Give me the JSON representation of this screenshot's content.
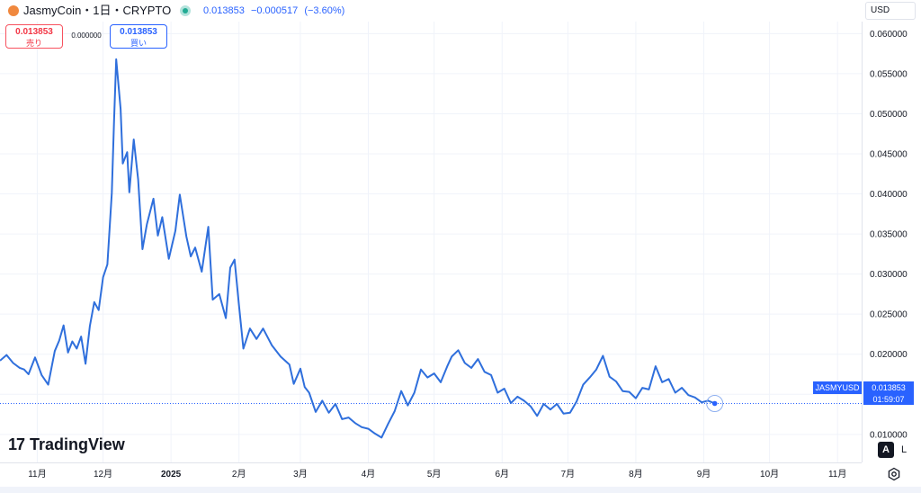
{
  "header": {
    "title": "JasmyCoin・1日・CRYPTO",
    "last_price": "0.013853",
    "change": "−0.000517",
    "change_pct": "(−3.60%)",
    "icons": {
      "coin": "jasmy-coin-icon",
      "status": "market-status-dot"
    }
  },
  "trade": {
    "sell_price": "0.013853",
    "sell_label": "売り",
    "spread": "0.000000",
    "buy_price": "0.013853",
    "buy_label": "買い"
  },
  "currency": "USD",
  "price_badge": {
    "symbol": "JASMYUSD",
    "price": "0.013853",
    "countdown": "01:59:07"
  },
  "scale_buttons": {
    "auto": "A",
    "log": "L"
  },
  "logo": {
    "mark": "17",
    "text": "TradingView"
  },
  "colors": {
    "line": "#2f6fdc",
    "accent": "#2962ff",
    "sell": "#f23645",
    "status": "#22ab94"
  },
  "chart_data": {
    "type": "line",
    "series": [
      {
        "values": [
          [
            "2024-10-15",
            0.0192
          ],
          [
            "2024-10-18",
            0.0199
          ],
          [
            "2024-10-21",
            0.0189
          ],
          [
            "2024-10-24",
            0.0183
          ],
          [
            "2024-10-26",
            0.0181
          ],
          [
            "2024-10-28",
            0.0175
          ],
          [
            "2024-10-31",
            0.0196
          ],
          [
            "2024-11-03",
            0.0174
          ],
          [
            "2024-11-06",
            0.0162
          ],
          [
            "2024-11-09",
            0.0204
          ],
          [
            "2024-11-11",
            0.0217
          ],
          [
            "2024-11-13",
            0.0236
          ],
          [
            "2024-11-15",
            0.0202
          ],
          [
            "2024-11-17",
            0.0216
          ],
          [
            "2024-11-19",
            0.0207
          ],
          [
            "2024-11-21",
            0.0222
          ],
          [
            "2024-11-23",
            0.0188
          ],
          [
            "2024-11-25",
            0.0235
          ],
          [
            "2024-11-27",
            0.0265
          ],
          [
            "2024-11-29",
            0.0255
          ],
          [
            "2024-12-01",
            0.0296
          ],
          [
            "2024-12-03",
            0.0312
          ],
          [
            "2024-12-05",
            0.0401
          ],
          [
            "2024-12-06",
            0.0491
          ],
          [
            "2024-12-07",
            0.0568
          ],
          [
            "2024-12-09",
            0.0506
          ],
          [
            "2024-12-10",
            0.0438
          ],
          [
            "2024-12-12",
            0.0452
          ],
          [
            "2024-12-13",
            0.0402
          ],
          [
            "2024-12-15",
            0.0468
          ],
          [
            "2024-12-17",
            0.0418
          ],
          [
            "2024-12-19",
            0.0331
          ],
          [
            "2024-12-21",
            0.0362
          ],
          [
            "2024-12-24",
            0.0394
          ],
          [
            "2024-12-26",
            0.0348
          ],
          [
            "2024-12-28",
            0.0371
          ],
          [
            "2024-12-31",
            0.0319
          ],
          [
            "2025-01-03",
            0.0354
          ],
          [
            "2025-01-05",
            0.0399
          ],
          [
            "2025-01-08",
            0.0347
          ],
          [
            "2025-01-10",
            0.0322
          ],
          [
            "2025-01-12",
            0.0333
          ],
          [
            "2025-01-15",
            0.0303
          ],
          [
            "2025-01-18",
            0.0359
          ],
          [
            "2025-01-20",
            0.0268
          ],
          [
            "2025-01-23",
            0.0275
          ],
          [
            "2025-01-26",
            0.0245
          ],
          [
            "2025-01-28",
            0.0308
          ],
          [
            "2025-01-30",
            0.0318
          ],
          [
            "2025-02-01",
            0.0261
          ],
          [
            "2025-02-03",
            0.0207
          ],
          [
            "2025-02-06",
            0.0232
          ],
          [
            "2025-02-09",
            0.0219
          ],
          [
            "2025-02-12",
            0.0232
          ],
          [
            "2025-02-16",
            0.0211
          ],
          [
            "2025-02-20",
            0.0197
          ],
          [
            "2025-02-24",
            0.0187
          ],
          [
            "2025-02-26",
            0.0163
          ],
          [
            "2025-03-01",
            0.0182
          ],
          [
            "2025-03-03",
            0.0159
          ],
          [
            "2025-03-05",
            0.0152
          ],
          [
            "2025-03-08",
            0.0128
          ],
          [
            "2025-03-11",
            0.0142
          ],
          [
            "2025-03-14",
            0.0127
          ],
          [
            "2025-03-17",
            0.0138
          ],
          [
            "2025-03-20",
            0.0119
          ],
          [
            "2025-03-23",
            0.0121
          ],
          [
            "2025-03-26",
            0.0114
          ],
          [
            "2025-03-29",
            0.0109
          ],
          [
            "2025-04-01",
            0.0107
          ],
          [
            "2025-04-04",
            0.0101
          ],
          [
            "2025-04-07",
            0.0096
          ],
          [
            "2025-04-10",
            0.0113
          ],
          [
            "2025-04-13",
            0.0129
          ],
          [
            "2025-04-16",
            0.0154
          ],
          [
            "2025-04-19",
            0.0136
          ],
          [
            "2025-04-22",
            0.0152
          ],
          [
            "2025-04-25",
            0.0181
          ],
          [
            "2025-04-28",
            0.0171
          ],
          [
            "2025-05-01",
            0.0176
          ],
          [
            "2025-05-04",
            0.0165
          ],
          [
            "2025-05-07",
            0.0185
          ],
          [
            "2025-05-09",
            0.0197
          ],
          [
            "2025-05-12",
            0.0205
          ],
          [
            "2025-05-15",
            0.0189
          ],
          [
            "2025-05-18",
            0.0183
          ],
          [
            "2025-05-21",
            0.0194
          ],
          [
            "2025-05-24",
            0.0178
          ],
          [
            "2025-05-27",
            0.0174
          ],
          [
            "2025-05-30",
            0.0152
          ],
          [
            "2025-06-02",
            0.0157
          ],
          [
            "2025-06-05",
            0.0139
          ],
          [
            "2025-06-08",
            0.0147
          ],
          [
            "2025-06-11",
            0.0142
          ],
          [
            "2025-06-14",
            0.0135
          ],
          [
            "2025-06-17",
            0.0123
          ],
          [
            "2025-06-20",
            0.0138
          ],
          [
            "2025-06-23",
            0.0131
          ],
          [
            "2025-06-26",
            0.0138
          ],
          [
            "2025-06-29",
            0.0126
          ],
          [
            "2025-07-02",
            0.0127
          ],
          [
            "2025-07-05",
            0.0141
          ],
          [
            "2025-07-08",
            0.0162
          ],
          [
            "2025-07-11",
            0.0171
          ],
          [
            "2025-07-14",
            0.0181
          ],
          [
            "2025-07-17",
            0.0198
          ],
          [
            "2025-07-20",
            0.0172
          ],
          [
            "2025-07-23",
            0.0166
          ],
          [
            "2025-07-26",
            0.0154
          ],
          [
            "2025-07-29",
            0.0153
          ],
          [
            "2025-08-01",
            0.0145
          ],
          [
            "2025-08-04",
            0.0158
          ],
          [
            "2025-08-07",
            0.0156
          ],
          [
            "2025-08-10",
            0.0185
          ],
          [
            "2025-08-13",
            0.0165
          ],
          [
            "2025-08-16",
            0.0169
          ],
          [
            "2025-08-19",
            0.0152
          ],
          [
            "2025-08-22",
            0.0158
          ],
          [
            "2025-08-25",
            0.0149
          ],
          [
            "2025-08-28",
            0.0146
          ],
          [
            "2025-08-31",
            0.014
          ],
          [
            "2025-09-03",
            0.0142
          ],
          [
            "2025-09-06",
            0.013853
          ]
        ]
      }
    ],
    "x_tick_labels": [
      "11月",
      "12月",
      "2025",
      "2月",
      "3月",
      "4月",
      "5月",
      "6月",
      "7月",
      "8月",
      "9月",
      "10月",
      "11月"
    ],
    "x_ticks": [
      "2024-11-01",
      "2024-12-01",
      "2025-01-01",
      "2025-02-01",
      "2025-03-01",
      "2025-04-01",
      "2025-05-01",
      "2025-06-01",
      "2025-07-01",
      "2025-08-01",
      "2025-09-01",
      "2025-10-01",
      "2025-11-01"
    ],
    "y_tick_labels": [
      "0.060000",
      "0.055000",
      "0.050000",
      "0.045000",
      "0.040000",
      "0.035000",
      "0.030000",
      "0.025000",
      "0.020000",
      "0.015000",
      "0.010000"
    ],
    "y_ticks": [
      0.06,
      0.055,
      0.05,
      0.045,
      0.04,
      0.035,
      0.03,
      0.025,
      0.02,
      0.015,
      0.01
    ],
    "last_value": 0.013853,
    "ylim": [
      0.0065,
      0.0615
    ],
    "xlim": [
      "2024-10-15",
      "2025-11-12"
    ],
    "grid": true,
    "legend": "none"
  }
}
